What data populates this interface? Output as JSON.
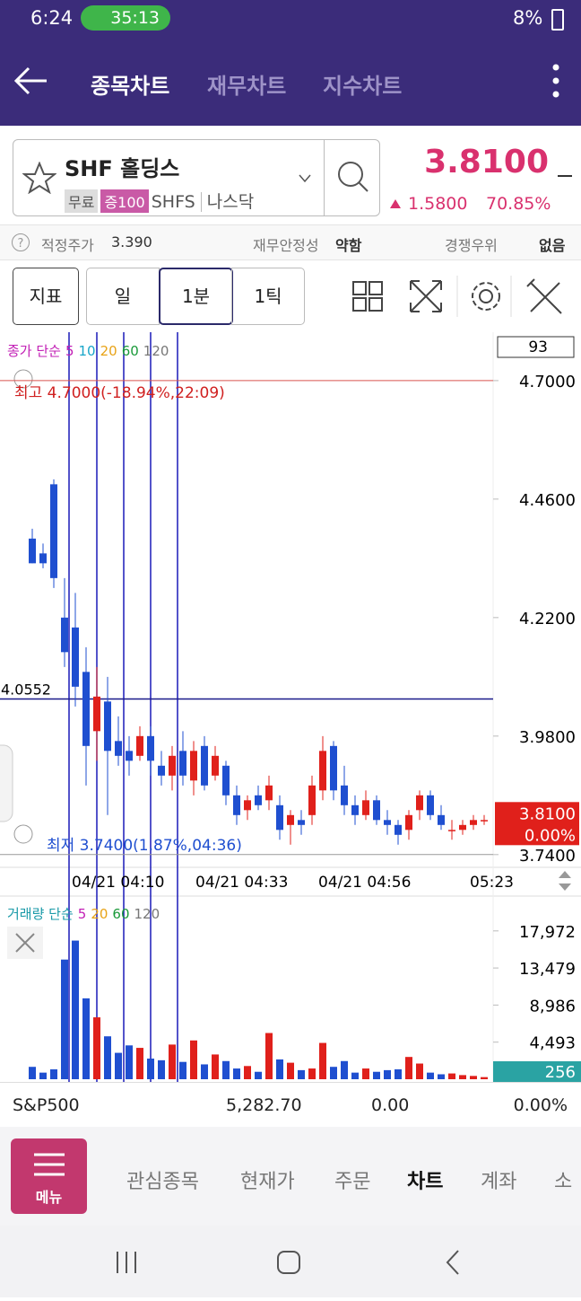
{
  "status_bar": {
    "time": "6:24",
    "call": "35:13",
    "battery": "8%"
  },
  "header": {
    "tabs": [
      "종목차트",
      "재무차트",
      "지수차트"
    ]
  },
  "stock": {
    "name": "SHF 홀딩스",
    "badges": [
      "무료",
      "증100"
    ],
    "ticker": "SHFS",
    "market": "나스닥",
    "price": "3.8100",
    "change": "1.5800",
    "change_pct": "70.85%"
  },
  "info": {
    "fair_price_label": "적정주가",
    "fair_price": "3.390",
    "stability_label": "재무안정성",
    "stability": "약함",
    "moat_label": "경쟁우위",
    "moat": "없음"
  },
  "toolbar": {
    "indicator": "지표",
    "periods": [
      "일",
      "1분",
      "1틱"
    ]
  },
  "chart": {
    "type": "candlestick",
    "legend": {
      "label": "종가 단순",
      "periods": [
        5,
        10,
        20,
        60,
        120
      ],
      "colors": [
        "#c21fb5",
        "#19a6c9",
        "#e8a317",
        "#1a9a3a",
        "#777777"
      ]
    },
    "count_box": 93,
    "ylim": [
      3.716,
      4.798
    ],
    "yticks": [
      {
        "value": 4.7,
        "label": "4.7000"
      },
      {
        "value": 4.46,
        "label": "4.4600"
      },
      {
        "value": 4.22,
        "label": "4.2200"
      },
      {
        "value": 3.98,
        "label": "3.9800"
      },
      {
        "value": 3.74,
        "label": "3.7400"
      }
    ],
    "high_note": "최고 4.7000(-18.94%,22:09)",
    "low_note": "최저 3.7400(1.87%,04:36)",
    "ref_line": {
      "value": 4.0552,
      "label": "4.0552"
    },
    "last": {
      "value": 3.81,
      "label": "3.8100"
    },
    "last_pct": "0.00%",
    "up_color": "#e0201b",
    "down_color": "#1f4fd0",
    "xlabels": [
      "04/21 04:10",
      "04/21 04:33",
      "04/21 04:56",
      "05:23"
    ],
    "candles": [
      [
        4.38,
        4.4,
        4.33,
        4.33
      ],
      [
        4.35,
        4.37,
        4.32,
        4.33
      ],
      [
        4.49,
        4.5,
        4.28,
        4.3
      ],
      [
        4.22,
        4.3,
        4.12,
        4.15
      ],
      [
        4.2,
        4.27,
        4.04,
        4.08
      ],
      [
        4.11,
        4.16,
        3.88,
        3.96
      ],
      [
        3.99,
        4.12,
        3.93,
        4.06
      ],
      [
        4.05,
        4.1,
        3.82,
        3.95
      ],
      [
        3.97,
        4.02,
        3.92,
        3.94
      ],
      [
        3.95,
        3.98,
        3.9,
        3.93
      ],
      [
        3.94,
        4.0,
        3.93,
        3.98
      ],
      [
        3.98,
        4.0,
        3.9,
        3.93
      ],
      [
        3.92,
        3.95,
        3.88,
        3.9
      ],
      [
        3.9,
        3.96,
        3.87,
        3.94
      ],
      [
        3.95,
        3.99,
        3.88,
        3.9
      ],
      [
        3.89,
        3.97,
        3.86,
        3.95
      ],
      [
        3.96,
        3.98,
        3.87,
        3.88
      ],
      [
        3.9,
        3.96,
        3.89,
        3.94
      ],
      [
        3.92,
        3.93,
        3.84,
        3.86
      ],
      [
        3.86,
        3.88,
        3.8,
        3.82
      ],
      [
        3.83,
        3.86,
        3.81,
        3.85
      ],
      [
        3.86,
        3.88,
        3.83,
        3.84
      ],
      [
        3.85,
        3.9,
        3.83,
        3.88
      ],
      [
        3.84,
        3.86,
        3.77,
        3.79
      ],
      [
        3.8,
        3.83,
        3.76,
        3.82
      ],
      [
        3.81,
        3.83,
        3.78,
        3.8
      ],
      [
        3.82,
        3.9,
        3.8,
        3.88
      ],
      [
        3.87,
        3.98,
        3.85,
        3.95
      ],
      [
        3.96,
        3.97,
        3.85,
        3.87
      ],
      [
        3.88,
        3.92,
        3.82,
        3.84
      ],
      [
        3.84,
        3.86,
        3.8,
        3.82
      ],
      [
        3.82,
        3.87,
        3.81,
        3.85
      ],
      [
        3.85,
        3.86,
        3.8,
        3.81
      ],
      [
        3.81,
        3.83,
        3.78,
        3.8
      ],
      [
        3.8,
        3.81,
        3.76,
        3.78
      ],
      [
        3.79,
        3.83,
        3.77,
        3.82
      ],
      [
        3.83,
        3.87,
        3.81,
        3.86
      ],
      [
        3.86,
        3.87,
        3.81,
        3.82
      ],
      [
        3.82,
        3.84,
        3.79,
        3.8
      ],
      [
        3.79,
        3.81,
        3.77,
        3.79
      ],
      [
        3.79,
        3.81,
        3.78,
        3.8
      ],
      [
        3.8,
        3.82,
        3.79,
        3.81
      ],
      [
        3.81,
        3.82,
        3.8,
        3.81
      ]
    ],
    "volume": {
      "legend": {
        "label": "거래량 단순",
        "periods": [
          5,
          20,
          60,
          120
        ],
        "colors": [
          "#c21fb5",
          "#e8a317",
          "#1a9a3a",
          "#777777"
        ]
      },
      "ylim": [
        0,
        19800
      ],
      "yticks": [
        {
          "value": 17972,
          "label": "17,972"
        },
        {
          "value": 13479,
          "label": "13,479"
        },
        {
          "value": 8986,
          "label": "8,986"
        },
        {
          "value": 4493,
          "label": "4,493"
        }
      ],
      "values": [
        1500,
        800,
        1200,
        14500,
        16800,
        9800,
        7500,
        5200,
        3200,
        4100,
        3800,
        2500,
        2300,
        4200,
        2100,
        4700,
        1800,
        3000,
        2200,
        1300,
        1600,
        900,
        5600,
        2400,
        2000,
        1100,
        1300,
        4400,
        1500,
        2200,
        800,
        1300,
        900,
        1100,
        1200,
        2700,
        1900,
        800,
        600,
        700,
        500,
        400,
        256
      ]
    }
  },
  "index_row": {
    "name": "S&P500",
    "value": "5,282.70",
    "change": "0.00",
    "change_pct": "0.00%"
  },
  "bottom_nav": {
    "menu": "메뉴",
    "items": [
      "관심종목",
      "현재가",
      "주문",
      "차트",
      "계좌",
      "소"
    ]
  }
}
